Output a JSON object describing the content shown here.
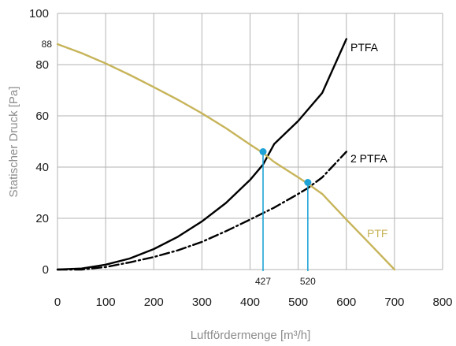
{
  "chart_data": {
    "type": "line",
    "xlabel": "Luftfördermenge [m³/h]",
    "ylabel": "Statischer Druck [Pa]",
    "xlim": [
      0,
      800
    ],
    "ylim": [
      0,
      100
    ],
    "grid": true,
    "x_ticks": [
      "0",
      "100",
      "200",
      "300",
      "400",
      "500",
      "600",
      "700",
      "800"
    ],
    "y_ticks": [
      "0",
      "20",
      "40",
      "60",
      "80",
      "100"
    ],
    "extra_y_tick": "88",
    "series": [
      {
        "name": "PTFA",
        "color": "#000000",
        "style": "solid",
        "points": [
          [
            0,
            0
          ],
          [
            50,
            0.4
          ],
          [
            100,
            1.9
          ],
          [
            150,
            4.3
          ],
          [
            200,
            8.0
          ],
          [
            250,
            12.8
          ],
          [
            300,
            18.8
          ],
          [
            350,
            26.0
          ],
          [
            400,
            35.0
          ],
          [
            427,
            41.0
          ],
          [
            450,
            49.0
          ],
          [
            500,
            58.0
          ],
          [
            550,
            69.0
          ],
          [
            600,
            90.0
          ]
        ]
      },
      {
        "name": "2 PTFA",
        "color": "#000000",
        "style": "dashdot",
        "points": [
          [
            0,
            0
          ],
          [
            50,
            0
          ],
          [
            100,
            1.0
          ],
          [
            150,
            2.8
          ],
          [
            200,
            4.9
          ],
          [
            250,
            7.5
          ],
          [
            300,
            10.8
          ],
          [
            350,
            15.0
          ],
          [
            400,
            19.5
          ],
          [
            450,
            24.2
          ],
          [
            500,
            29.5
          ],
          [
            520,
            31.8
          ],
          [
            550,
            36.0
          ],
          [
            600,
            46.0
          ]
        ]
      },
      {
        "name": "PTF",
        "color": "#c7b45a",
        "style": "solid",
        "points": [
          [
            0,
            88
          ],
          [
            50,
            84.5
          ],
          [
            100,
            80.5
          ],
          [
            150,
            76.0
          ],
          [
            200,
            71.2
          ],
          [
            250,
            66.3
          ],
          [
            300,
            61.0
          ],
          [
            350,
            55.2
          ],
          [
            400,
            48.8
          ],
          [
            427,
            45.5
          ],
          [
            450,
            42.0
          ],
          [
            500,
            36.0
          ],
          [
            520,
            33.5
          ],
          [
            550,
            29.5
          ],
          [
            600,
            19.5
          ],
          [
            650,
            9.8
          ],
          [
            700,
            0
          ]
        ]
      }
    ],
    "operating_points": [
      {
        "x": 427,
        "y": 46,
        "label": "427"
      },
      {
        "x": 520,
        "y": 34,
        "label": "520"
      }
    ],
    "point_color": "#1fa3d6",
    "drop_line_color": "#1fa3d6"
  }
}
